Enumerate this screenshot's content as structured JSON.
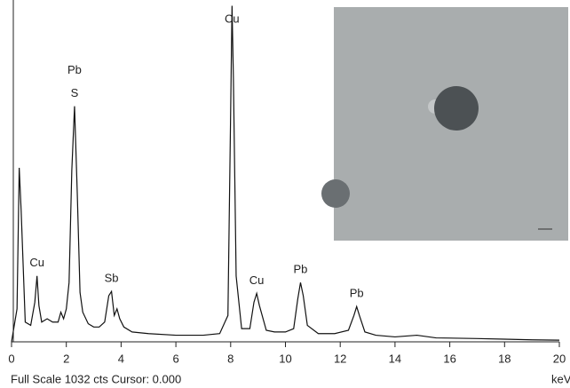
{
  "chart_data": {
    "type": "line",
    "x_label": "keV",
    "footer": "Full Scale 1032 cts Cursor: 0.000",
    "xlim": [
      0,
      20
    ],
    "xticks": [
      0,
      2,
      4,
      6,
      8,
      10,
      12,
      14,
      16,
      18,
      20
    ],
    "ylim": [
      0,
      1032
    ],
    "color": "#111111",
    "x": [
      0,
      0.2,
      0.28,
      0.35,
      0.5,
      0.7,
      0.85,
      0.93,
      1.0,
      1.1,
      1.3,
      1.5,
      1.7,
      1.8,
      1.9,
      2.0,
      2.1,
      2.2,
      2.3,
      2.4,
      2.5,
      2.6,
      2.8,
      3.0,
      3.2,
      3.4,
      3.55,
      3.65,
      3.75,
      3.85,
      3.95,
      4.1,
      4.4,
      5.0,
      6.0,
      7.0,
      7.6,
      7.9,
      8.0,
      8.05,
      8.1,
      8.2,
      8.4,
      8.7,
      8.85,
      8.95,
      9.05,
      9.3,
      9.6,
      10.0,
      10.3,
      10.45,
      10.55,
      10.65,
      10.8,
      11.2,
      11.8,
      12.3,
      12.5,
      12.6,
      12.7,
      12.9,
      13.3,
      14.0,
      14.8,
      15.5,
      17,
      18,
      19,
      20
    ],
    "values": [
      0,
      100,
      528,
      400,
      60,
      50,
      120,
      200,
      110,
      60,
      70,
      60,
      60,
      90,
      70,
      100,
      180,
      520,
      715,
      450,
      150,
      90,
      55,
      45,
      45,
      60,
      140,
      153,
      80,
      100,
      70,
      45,
      30,
      25,
      20,
      20,
      25,
      80,
      700,
      1020,
      800,
      200,
      40,
      40,
      120,
      147,
      110,
      35,
      30,
      30,
      40,
      130,
      180,
      140,
      50,
      25,
      25,
      35,
      80,
      107,
      80,
      30,
      20,
      15,
      20,
      12,
      10,
      8,
      6,
      5
    ],
    "annotations": [
      {
        "text": "S",
        "x": 2.3
      },
      {
        "text": "Pb",
        "x": 2.3
      },
      {
        "text": "Cu",
        "x": 0.93
      },
      {
        "text": "Sb",
        "x": 3.65
      },
      {
        "text": "Cu",
        "x": 8.05
      },
      {
        "text": "Cu",
        "x": 8.95
      },
      {
        "text": "Pb",
        "x": 10.55
      },
      {
        "text": "Pb",
        "x": 12.6
      }
    ]
  }
}
